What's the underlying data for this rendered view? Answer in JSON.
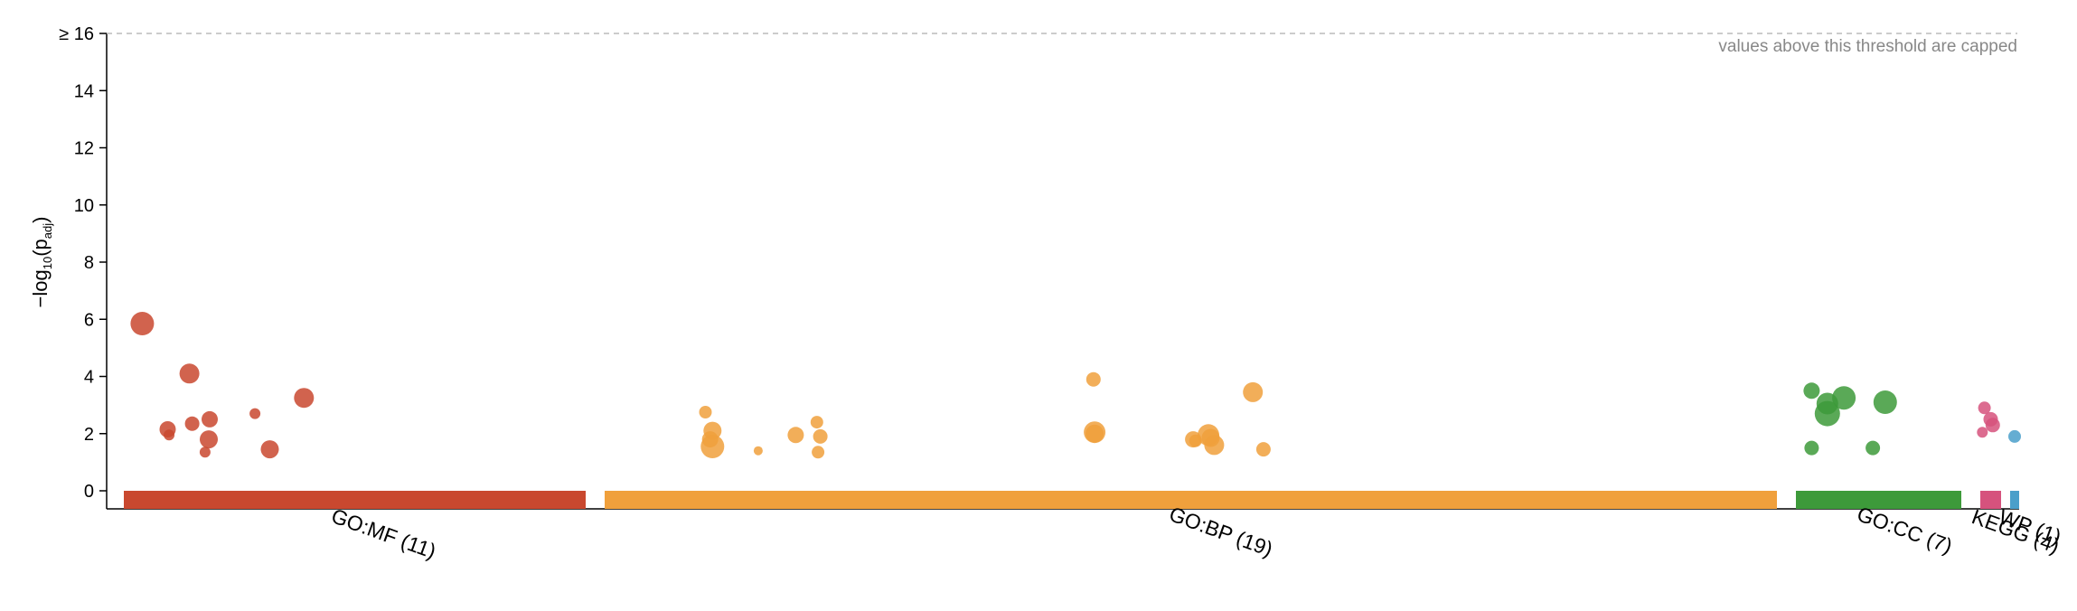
{
  "chart_data": {
    "type": "scatter",
    "title": "",
    "ylabel": {
      "prefix": "−log",
      "sub1": "10",
      "mid": "(p",
      "sub2": "adj",
      "suffix": ")"
    },
    "xlabel": "",
    "ylim": [
      0,
      16
    ],
    "yticks": [
      {
        "value": 0,
        "label": "0"
      },
      {
        "value": 2,
        "label": "2"
      },
      {
        "value": 4,
        "label": "4"
      },
      {
        "value": 6,
        "label": "6"
      },
      {
        "value": 8,
        "label": "8"
      },
      {
        "value": 10,
        "label": "10"
      },
      {
        "value": 12,
        "label": "12"
      },
      {
        "value": 14,
        "label": "14"
      },
      {
        "value": 16,
        "label": "≥ 16"
      }
    ],
    "cap_note": "values above this threshold are capped",
    "grid": false,
    "categories": [
      {
        "name": "GO:MF",
        "label": "GO:MF (11)",
        "count": 11,
        "color": "#c9482f"
      },
      {
        "name": "GO:BP",
        "label": "GO:BP (19)",
        "count": 19,
        "color": "#f0a03c"
      },
      {
        "name": "GO:CC",
        "label": "GO:CC (7)",
        "count": 7,
        "color": "#3d9a3a"
      },
      {
        "name": "KEGG",
        "label": "KEGG (4)",
        "count": 4,
        "color": "#d6527d"
      },
      {
        "name": "WP",
        "label": "WP (1)",
        "count": 1,
        "color": "#4a9fca"
      }
    ],
    "series": [
      {
        "category": "GO:MF",
        "points": [
          {
            "x": 0.04,
            "y": 5.85,
            "size": 13
          },
          {
            "x": 0.142,
            "y": 4.1,
            "size": 11
          },
          {
            "x": 0.095,
            "y": 2.15,
            "size": 9
          },
          {
            "x": 0.098,
            "y": 1.95,
            "size": 6
          },
          {
            "x": 0.148,
            "y": 2.35,
            "size": 8
          },
          {
            "x": 0.186,
            "y": 2.5,
            "size": 9
          },
          {
            "x": 0.184,
            "y": 1.8,
            "size": 10
          },
          {
            "x": 0.176,
            "y": 1.35,
            "size": 6
          },
          {
            "x": 0.284,
            "y": 2.7,
            "size": 6
          },
          {
            "x": 0.316,
            "y": 1.45,
            "size": 10
          },
          {
            "x": 0.39,
            "y": 3.25,
            "size": 11
          }
        ]
      },
      {
        "category": "GO:BP",
        "points": [
          {
            "x": 0.086,
            "y": 2.75,
            "size": 7
          },
          {
            "x": 0.09,
            "y": 1.8,
            "size": 9
          },
          {
            "x": 0.092,
            "y": 2.1,
            "size": 10
          },
          {
            "x": 0.092,
            "y": 1.55,
            "size": 13
          },
          {
            "x": 0.131,
            "y": 1.4,
            "size": 5
          },
          {
            "x": 0.163,
            "y": 1.95,
            "size": 9
          },
          {
            "x": 0.181,
            "y": 2.4,
            "size": 7
          },
          {
            "x": 0.184,
            "y": 1.9,
            "size": 8
          },
          {
            "x": 0.182,
            "y": 1.35,
            "size": 7
          },
          {
            "x": 0.417,
            "y": 3.9,
            "size": 8
          },
          {
            "x": 0.418,
            "y": 2.05,
            "size": 12
          },
          {
            "x": 0.418,
            "y": 2.0,
            "size": 10
          },
          {
            "x": 0.502,
            "y": 1.8,
            "size": 9
          },
          {
            "x": 0.515,
            "y": 1.95,
            "size": 12
          },
          {
            "x": 0.517,
            "y": 1.85,
            "size": 10
          },
          {
            "x": 0.52,
            "y": 1.6,
            "size": 11
          },
          {
            "x": 0.553,
            "y": 3.45,
            "size": 11
          },
          {
            "x": 0.562,
            "y": 1.45,
            "size": 8
          },
          {
            "x": 0.504,
            "y": 1.75,
            "size": 7
          }
        ]
      },
      {
        "category": "GO:CC",
        "points": [
          {
            "x": 0.095,
            "y": 3.5,
            "size": 9
          },
          {
            "x": 0.095,
            "y": 1.5,
            "size": 8
          },
          {
            "x": 0.19,
            "y": 3.05,
            "size": 12
          },
          {
            "x": 0.19,
            "y": 2.7,
            "size": 14
          },
          {
            "x": 0.29,
            "y": 3.25,
            "size": 13
          },
          {
            "x": 0.465,
            "y": 1.5,
            "size": 8
          },
          {
            "x": 0.54,
            "y": 3.1,
            "size": 13
          }
        ]
      },
      {
        "category": "KEGG",
        "points": [
          {
            "x": 0.2,
            "y": 2.9,
            "size": 7
          },
          {
            "x": 0.5,
            "y": 2.5,
            "size": 8
          },
          {
            "x": 0.6,
            "y": 2.3,
            "size": 8
          },
          {
            "x": 0.1,
            "y": 2.05,
            "size": 6
          }
        ]
      },
      {
        "category": "WP",
        "points": [
          {
            "x": 0.5,
            "y": 1.9,
            "size": 7
          }
        ]
      }
    ]
  }
}
